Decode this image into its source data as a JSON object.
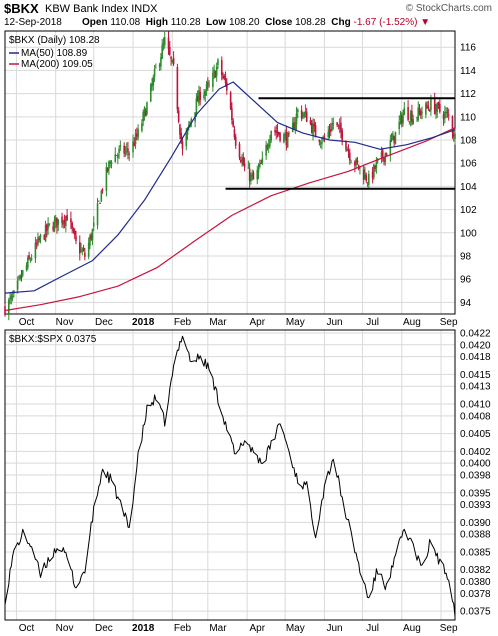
{
  "header": {
    "symbol": "$BKX",
    "full_name": "KBW Bank Index  INDX",
    "brand": "© StockCharts.com",
    "date": "12-Sep-2018",
    "open_label": "Open",
    "open": "110.08",
    "high_label": "High",
    "high": "110.28",
    "low_label": "Low",
    "low": "108.20",
    "close_label": "Close",
    "close": "108.28",
    "chg_label": "Chg",
    "chg": "-1.67 (-1.52%)",
    "chg_icon": "down-triangle-icon"
  },
  "colors": {
    "up": "#2e8b2e",
    "down": "#c0143c",
    "ma50": "#1f2a8a",
    "ma200": "#c8143c",
    "ratio": "#000000",
    "grid": "#d9d9d9"
  },
  "chart_data": [
    {
      "type": "candlestick",
      "title": "$BKX (Daily) 108.28",
      "legend": [
        {
          "name": "MA(50) 108.89",
          "color": "#1f2a8a"
        },
        {
          "name": "MA(200) 109.05",
          "color": "#c8143c"
        }
      ],
      "legend_placement": "top-left",
      "x_ticks": [
        "Oct",
        "Nov",
        "Dec",
        "2018",
        "Feb",
        "Mar",
        "Apr",
        "May",
        "Jun",
        "Jul",
        "Aug",
        "Sep"
      ],
      "y_ticks": [
        94,
        96,
        98,
        100,
        102,
        104,
        106,
        108,
        110,
        112,
        114,
        116
      ],
      "ylim": [
        93,
        117.4
      ],
      "x_range": [
        "2017-09-22",
        "2018-09-12"
      ],
      "grid": true,
      "price_path": [
        [
          "2017-09-22",
          93.5
        ],
        [
          "2017-09-29",
          94.5
        ],
        [
          "2017-10-06",
          96.5
        ],
        [
          "2017-10-13",
          98.0
        ],
        [
          "2017-10-20",
          99.5
        ],
        [
          "2017-10-27",
          100.5
        ],
        [
          "2017-11-03",
          101.0
        ],
        [
          "2017-11-10",
          101.5
        ],
        [
          "2017-11-17",
          99.0
        ],
        [
          "2017-11-24",
          98.0
        ],
        [
          "2017-12-01",
          100.5
        ],
        [
          "2017-12-08",
          104.0
        ],
        [
          "2017-12-15",
          106.5
        ],
        [
          "2017-12-22",
          107.0
        ],
        [
          "2017-12-29",
          107.0
        ],
        [
          "2018-01-05",
          108.5
        ],
        [
          "2018-01-12",
          111.0
        ],
        [
          "2018-01-19",
          114.0
        ],
        [
          "2018-01-26",
          116.5
        ],
        [
          "2018-02-02",
          114.0
        ],
        [
          "2018-02-09",
          107.0
        ],
        [
          "2018-02-16",
          110.0
        ],
        [
          "2018-02-23",
          112.0
        ],
        [
          "2018-03-02",
          112.5
        ],
        [
          "2018-03-09",
          114.5
        ],
        [
          "2018-03-16",
          112.5
        ],
        [
          "2018-03-23",
          108.0
        ],
        [
          "2018-03-30",
          105.5
        ],
        [
          "2018-04-06",
          104.5
        ],
        [
          "2018-04-13",
          106.0
        ],
        [
          "2018-04-20",
          109.0
        ],
        [
          "2018-04-27",
          108.5
        ],
        [
          "2018-05-04",
          108.0
        ],
        [
          "2018-05-11",
          110.5
        ],
        [
          "2018-05-18",
          110.0
        ],
        [
          "2018-05-25",
          108.5
        ],
        [
          "2018-06-01",
          108.0
        ],
        [
          "2018-06-08",
          109.5
        ],
        [
          "2018-06-15",
          108.5
        ],
        [
          "2018-06-22",
          106.5
        ],
        [
          "2018-06-29",
          105.5
        ],
        [
          "2018-07-06",
          104.5
        ],
        [
          "2018-07-13",
          106.0
        ],
        [
          "2018-07-20",
          107.0
        ],
        [
          "2018-07-27",
          108.5
        ],
        [
          "2018-08-03",
          110.5
        ],
        [
          "2018-08-10",
          110.0
        ],
        [
          "2018-08-17",
          110.5
        ],
        [
          "2018-08-24",
          111.0
        ],
        [
          "2018-08-31",
          110.5
        ],
        [
          "2018-09-07",
          110.0
        ],
        [
          "2018-09-12",
          108.28
        ]
      ],
      "ma50": [
        [
          "2017-09-22",
          94.8
        ],
        [
          "2017-10-15",
          95.0
        ],
        [
          "2017-11-05",
          96.2
        ],
        [
          "2017-11-30",
          97.6
        ],
        [
          "2017-12-20",
          99.8
        ],
        [
          "2018-01-10",
          102.8
        ],
        [
          "2018-01-31",
          106.5
        ],
        [
          "2018-02-20",
          110.2
        ],
        [
          "2018-03-10",
          112.4
        ],
        [
          "2018-03-21",
          113.0
        ],
        [
          "2018-04-05",
          111.5
        ],
        [
          "2018-04-25",
          109.5
        ],
        [
          "2018-05-15",
          108.6
        ],
        [
          "2018-06-05",
          108.0
        ],
        [
          "2018-06-25",
          107.8
        ],
        [
          "2018-07-15",
          107.2
        ],
        [
          "2018-08-05",
          107.6
        ],
        [
          "2018-08-25",
          108.2
        ],
        [
          "2018-09-12",
          108.89
        ]
      ],
      "ma200": [
        [
          "2017-09-22",
          93.3
        ],
        [
          "2017-10-20",
          93.8
        ],
        [
          "2017-11-20",
          94.5
        ],
        [
          "2017-12-20",
          95.4
        ],
        [
          "2018-01-20",
          97.0
        ],
        [
          "2018-02-20",
          99.4
        ],
        [
          "2018-03-20",
          101.5
        ],
        [
          "2018-04-20",
          103.2
        ],
        [
          "2018-05-20",
          104.3
        ],
        [
          "2018-06-20",
          105.3
        ],
        [
          "2018-07-20",
          106.6
        ],
        [
          "2018-08-20",
          107.9
        ],
        [
          "2018-09-12",
          109.05
        ]
      ],
      "annotations": [
        {
          "type": "horizontal_line",
          "y": 111.6,
          "x_from": "2018-04-10",
          "x_to": "2018-09-12"
        },
        {
          "type": "horizontal_line",
          "y": 103.8,
          "x_from": "2018-03-15",
          "x_to": "2018-09-12"
        }
      ]
    },
    {
      "type": "line",
      "title": "$BKX:$SPX 0.0375",
      "x_ticks": [
        "Oct",
        "Nov",
        "Dec",
        "2018",
        "Feb",
        "Mar",
        "Apr",
        "May",
        "Jun",
        "Jul",
        "Aug",
        "Sep"
      ],
      "y_ticks": [
        0.0375,
        0.0378,
        0.038,
        0.0382,
        0.0385,
        0.0388,
        0.039,
        0.0393,
        0.0395,
        0.0398,
        0.04,
        0.0402,
        0.0405,
        0.0408,
        0.041,
        0.0413,
        0.0415,
        0.0418,
        0.042,
        0.0422
      ],
      "y_tick_labels": [
        "0.0375",
        "0.0378",
        "0.0380",
        "0.0382",
        "0.0385",
        "0.0388",
        "0.0390",
        "0.0393",
        "0.0395",
        "0.0398",
        "0.0400",
        "0.0402",
        "0.0405",
        "0.0408",
        "0.0410",
        "0.0413",
        "0.0415",
        "0.0418",
        "0.0420",
        "0.0422"
      ],
      "ylim": [
        0.03735,
        0.04225
      ],
      "x_range": [
        "2017-09-22",
        "2018-09-12"
      ],
      "grid": true,
      "series": [
        {
          "values": [
            [
              "2017-09-22",
              0.0377
            ],
            [
              "2017-09-29",
              0.0385
            ],
            [
              "2017-10-06",
              0.0388
            ],
            [
              "2017-10-13",
              0.0386
            ],
            [
              "2017-10-20",
              0.0381
            ],
            [
              "2017-10-27",
              0.0384
            ],
            [
              "2017-11-03",
              0.0386
            ],
            [
              "2017-11-10",
              0.0384
            ],
            [
              "2017-11-17",
              0.0379
            ],
            [
              "2017-11-24",
              0.0382
            ],
            [
              "2017-12-01",
              0.0392
            ],
            [
              "2017-12-08",
              0.0399
            ],
            [
              "2017-12-15",
              0.0397
            ],
            [
              "2017-12-22",
              0.0393
            ],
            [
              "2017-12-29",
              0.0389
            ],
            [
              "2018-01-05",
              0.0401
            ],
            [
              "2018-01-12",
              0.0409
            ],
            [
              "2018-01-19",
              0.0411
            ],
            [
              "2018-01-26",
              0.0407
            ],
            [
              "2018-02-02",
              0.0416
            ],
            [
              "2018-02-09",
              0.0422
            ],
            [
              "2018-02-16",
              0.0417
            ],
            [
              "2018-02-23",
              0.0418
            ],
            [
              "2018-03-02",
              0.0416
            ],
            [
              "2018-03-09",
              0.0411
            ],
            [
              "2018-03-16",
              0.0406
            ],
            [
              "2018-03-23",
              0.0401
            ],
            [
              "2018-03-30",
              0.0404
            ],
            [
              "2018-04-06",
              0.0402
            ],
            [
              "2018-04-13",
              0.04
            ],
            [
              "2018-04-20",
              0.0403
            ],
            [
              "2018-04-27",
              0.0407
            ],
            [
              "2018-05-04",
              0.0402
            ],
            [
              "2018-05-11",
              0.0397
            ],
            [
              "2018-05-18",
              0.0396
            ],
            [
              "2018-05-25",
              0.0388
            ],
            [
              "2018-06-01",
              0.0396
            ],
            [
              "2018-06-08",
              0.0401
            ],
            [
              "2018-06-15",
              0.0394
            ],
            [
              "2018-06-22",
              0.0388
            ],
            [
              "2018-06-29",
              0.0382
            ],
            [
              "2018-07-06",
              0.0377
            ],
            [
              "2018-07-13",
              0.0382
            ],
            [
              "2018-07-20",
              0.0379
            ],
            [
              "2018-07-27",
              0.0384
            ],
            [
              "2018-08-03",
              0.0389
            ],
            [
              "2018-08-10",
              0.0386
            ],
            [
              "2018-08-17",
              0.0382
            ],
            [
              "2018-08-24",
              0.0387
            ],
            [
              "2018-08-31",
              0.0383
            ],
            [
              "2018-09-07",
              0.0381
            ],
            [
              "2018-09-12",
              0.0375
            ]
          ]
        }
      ]
    }
  ]
}
